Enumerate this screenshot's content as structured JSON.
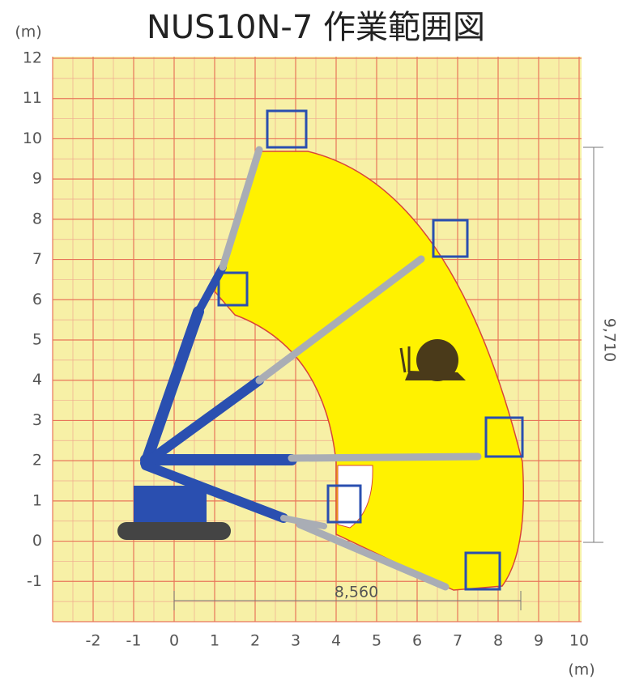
{
  "title": "NUS10N-7 作業範囲図",
  "y_unit": "(m)",
  "x_unit": "(m)",
  "xlim": [
    -3,
    10
  ],
  "ylim": [
    -2,
    12
  ],
  "xticks": [
    -2,
    -1,
    0,
    1,
    2,
    3,
    4,
    5,
    6,
    7,
    8,
    9,
    10
  ],
  "yticks": [
    -1,
    0,
    1,
    2,
    3,
    4,
    5,
    6,
    7,
    8,
    9,
    10,
    11,
    12
  ],
  "dimensions": {
    "horizontal": "8,560",
    "vertical": "9,710"
  }
}
